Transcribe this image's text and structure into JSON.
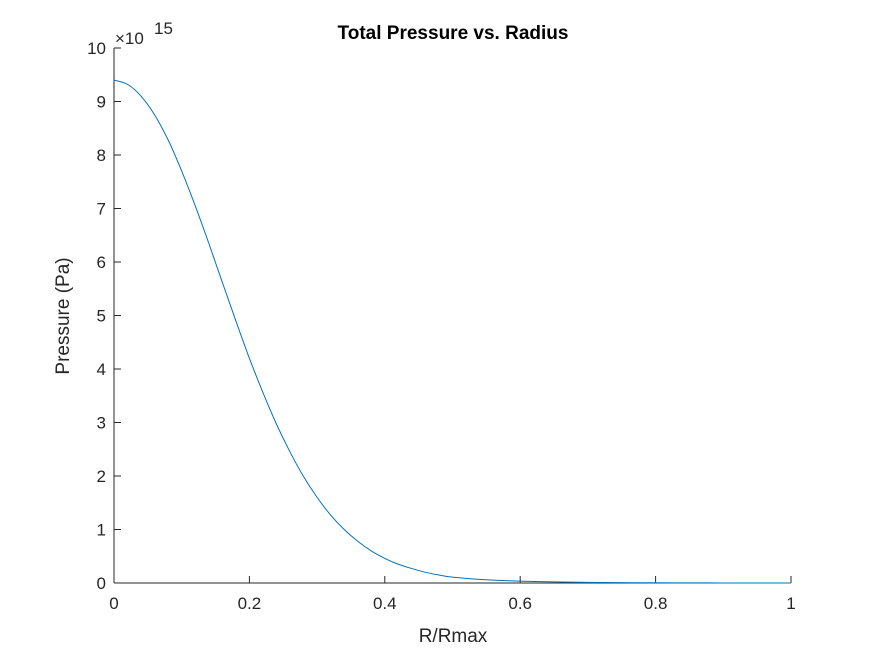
{
  "chart_data": {
    "type": "line",
    "title": "Total Pressure vs. Radius",
    "xlabel": "R/Rmax",
    "ylabel": "Pressure (Pa)",
    "y_exponent_base": "×10",
    "y_exponent_power": "15",
    "xlim": [
      0,
      1
    ],
    "ylim": [
      0,
      10
    ],
    "x_ticks": [
      "0",
      "0.2",
      "0.4",
      "0.6",
      "0.8",
      "1"
    ],
    "y_ticks": [
      "0",
      "1",
      "2",
      "3",
      "4",
      "5",
      "6",
      "7",
      "8",
      "9",
      "10"
    ],
    "grid": false,
    "series": [
      {
        "color": "#0072BD",
        "x": [
          0,
          0.02,
          0.04,
          0.06,
          0.08,
          0.1,
          0.12,
          0.14,
          0.16,
          0.18,
          0.2,
          0.22,
          0.24,
          0.26,
          0.28,
          0.3,
          0.32,
          0.34,
          0.36,
          0.38,
          0.4,
          0.42,
          0.44,
          0.46,
          0.48,
          0.5,
          0.55,
          0.6,
          0.65,
          0.7,
          0.75,
          0.8,
          0.85,
          0.9,
          0.95,
          1.0
        ],
        "y": [
          9.4,
          9.32,
          9.1,
          8.75,
          8.28,
          7.7,
          7.05,
          6.35,
          5.62,
          4.9,
          4.2,
          3.56,
          2.97,
          2.45,
          1.99,
          1.6,
          1.27,
          1.0,
          0.78,
          0.6,
          0.46,
          0.35,
          0.27,
          0.2,
          0.15,
          0.11,
          0.06,
          0.035,
          0.02,
          0.012,
          0.007,
          0.004,
          0.002,
          0.001,
          0.0005,
          0.0002
        ]
      }
    ]
  }
}
